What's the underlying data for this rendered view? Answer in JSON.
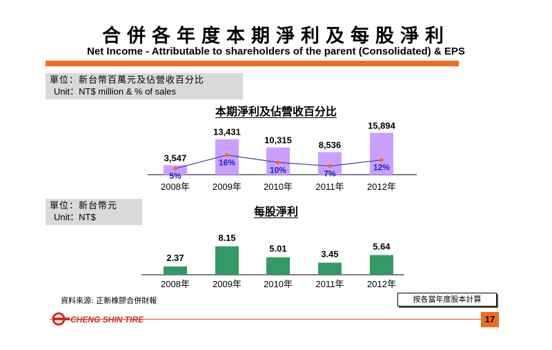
{
  "header": {
    "title_zh": "合併各年度本期淨利及每股淨利",
    "title_en": "Net Income - Attributable to shareholders of the parent (Consolidated) & EPS"
  },
  "unit_box_1": {
    "zh": "單位：新台幣百萬元及佔營收百分比",
    "en": "Unit：NT$ million & % of sales"
  },
  "unit_box_2": {
    "zh": "單位：新台幣元",
    "en": "Unit：NT$"
  },
  "colors": {
    "accent": "#f06d1c",
    "bar_purple": "#c9a0ff",
    "bar_green": "#339966",
    "line": "#3a3fa6",
    "marker": "#f06d1c",
    "pct_text": "#1f1fc8"
  },
  "chart_data": [
    {
      "type": "bar",
      "title": "本期淨利及佔營收百分比",
      "categories": [
        "2008年",
        "2009年",
        "2010年",
        "2011年",
        "2012年"
      ],
      "values": [
        3547,
        13431,
        10315,
        8536,
        15894
      ],
      "value_labels": [
        "3,547",
        "13,431",
        "10,315",
        "8,536",
        "15,894"
      ],
      "ylim": [
        0,
        16500
      ],
      "series": [
        {
          "values": [
            3547,
            13431,
            10315,
            8536,
            15894
          ]
        },
        {
          "type": "line",
          "values": [
            5,
            16,
            10,
            7,
            12
          ],
          "labels": [
            "5%",
            "16%",
            "10%",
            "7%",
            "12%"
          ]
        }
      ],
      "line_ylim": [
        0,
        40
      ]
    },
    {
      "type": "bar",
      "title": "每股淨利",
      "categories": [
        "2008年",
        "2009年",
        "2010年",
        "2011年",
        "2012年"
      ],
      "values": [
        2.37,
        8.15,
        5.01,
        3.45,
        5.64
      ],
      "value_labels": [
        "2.37",
        "8.15",
        "5.01",
        "3.45",
        "5.64"
      ],
      "ylim": [
        0,
        8.5
      ]
    }
  ],
  "footer": {
    "source": "資料來源: 正新橡膠合併財報",
    "note": "按各當年度股本計算",
    "logo_text": "CHENG SHIN TIRE",
    "page_number": "17"
  }
}
